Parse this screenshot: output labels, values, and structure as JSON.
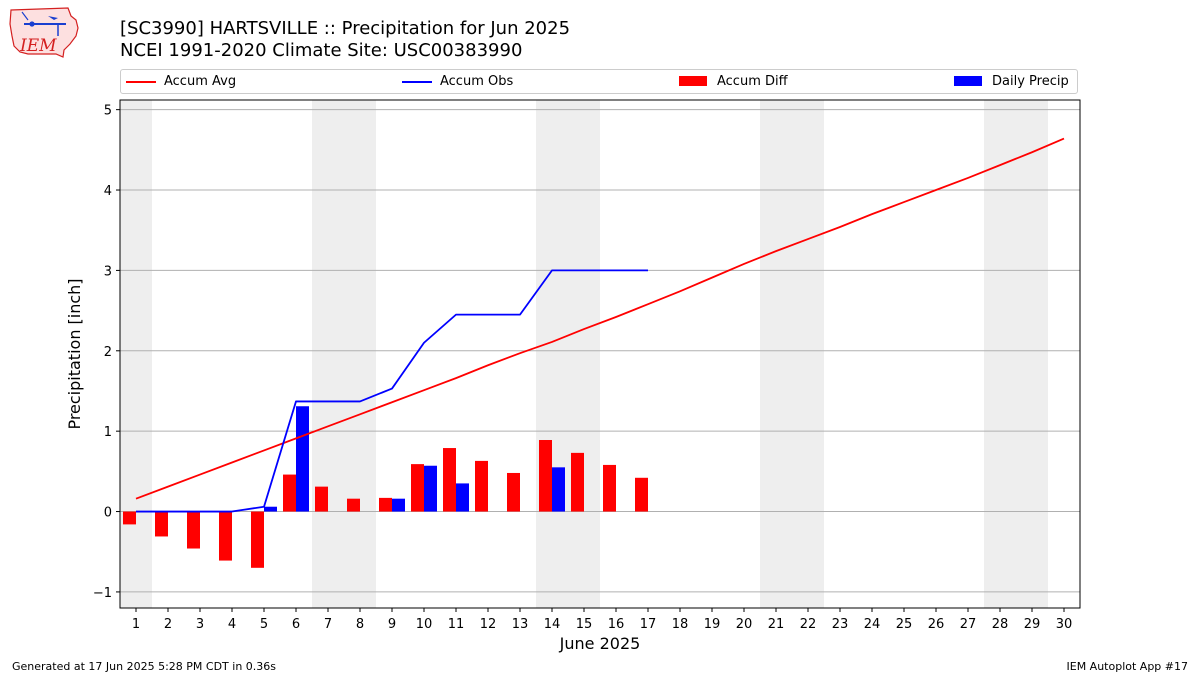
{
  "header": {
    "title_line1": "[SC3990] HARTSVILLE :: Precipitation for Jun 2025",
    "title_line2": "NCEI 1991-2020 Climate Site: USC00383990",
    "logo_text": "IEM"
  },
  "footer": {
    "left": "Generated at 17 Jun 2025 5:28 PM CDT in 0.36s",
    "right": "IEM Autoplot App #17"
  },
  "colors": {
    "accum_avg": "#ff0000",
    "accum_obs": "#0000ff",
    "accum_diff": "#ff0000",
    "daily_precip": "#0000ff",
    "weekend_shade": "#eeeeee",
    "grid": "#b0b0b0"
  },
  "chart_data": {
    "type": "bar",
    "xlabel": "June 2025",
    "ylabel": "Precipitation [inch]",
    "ylim": [
      -1.2,
      5.12
    ],
    "yticks": [
      -1,
      0,
      1,
      2,
      3,
      4,
      5
    ],
    "xlim": [
      0.5,
      30.5
    ],
    "days": [
      1,
      2,
      3,
      4,
      5,
      6,
      7,
      8,
      9,
      10,
      11,
      12,
      13,
      14,
      15,
      16,
      17,
      18,
      19,
      20,
      21,
      22,
      23,
      24,
      25,
      26,
      27,
      28,
      29,
      30
    ],
    "grid": "horizontal",
    "legend_position": "top",
    "shaded_days": [
      [
        1,
        1
      ],
      [
        7,
        8
      ],
      [
        14,
        15
      ],
      [
        21,
        22
      ],
      [
        28,
        29
      ]
    ],
    "series": [
      {
        "name": "Accum Avg",
        "kind": "line",
        "x": [
          1,
          2,
          3,
          4,
          5,
          6,
          7,
          8,
          9,
          10,
          11,
          12,
          13,
          14,
          15,
          16,
          17,
          18,
          19,
          20,
          21,
          22,
          23,
          24,
          25,
          26,
          27,
          28,
          29,
          30
        ],
        "values": [
          0.16,
          0.31,
          0.46,
          0.61,
          0.76,
          0.91,
          1.06,
          1.21,
          1.36,
          1.51,
          1.66,
          1.82,
          1.97,
          2.11,
          2.27,
          2.42,
          2.58,
          2.74,
          2.91,
          3.08,
          3.24,
          3.39,
          3.54,
          3.7,
          3.85,
          4.0,
          4.15,
          4.31,
          4.47,
          4.64
        ]
      },
      {
        "name": "Accum Obs",
        "kind": "line",
        "x": [
          1,
          2,
          3,
          4,
          5,
          6,
          7,
          8,
          9,
          10,
          11,
          12,
          13,
          14,
          15,
          16,
          17
        ],
        "values": [
          0.0,
          0.0,
          0.0,
          0.0,
          0.06,
          1.37,
          1.37,
          1.37,
          1.53,
          2.1,
          2.45,
          2.45,
          2.45,
          3.0,
          3.0,
          3.0,
          3.0
        ]
      },
      {
        "name": "Accum Diff",
        "kind": "bar",
        "x": [
          1,
          2,
          3,
          4,
          5,
          6,
          7,
          8,
          9,
          10,
          11,
          12,
          13,
          14,
          15,
          16,
          17
        ],
        "values": [
          -0.16,
          -0.31,
          -0.46,
          -0.61,
          -0.7,
          0.46,
          0.31,
          0.16,
          0.17,
          0.59,
          0.79,
          0.63,
          0.48,
          0.89,
          0.73,
          0.58,
          0.42
        ]
      },
      {
        "name": "Daily Precip",
        "kind": "bar",
        "x": [
          1,
          2,
          3,
          4,
          5,
          6,
          7,
          8,
          9,
          10,
          11,
          12,
          13,
          14,
          15,
          16,
          17
        ],
        "values": [
          0,
          0,
          0,
          0,
          0.06,
          1.31,
          0,
          0,
          0.16,
          0.57,
          0.35,
          0,
          0,
          0.55,
          0,
          0,
          0
        ]
      }
    ]
  }
}
